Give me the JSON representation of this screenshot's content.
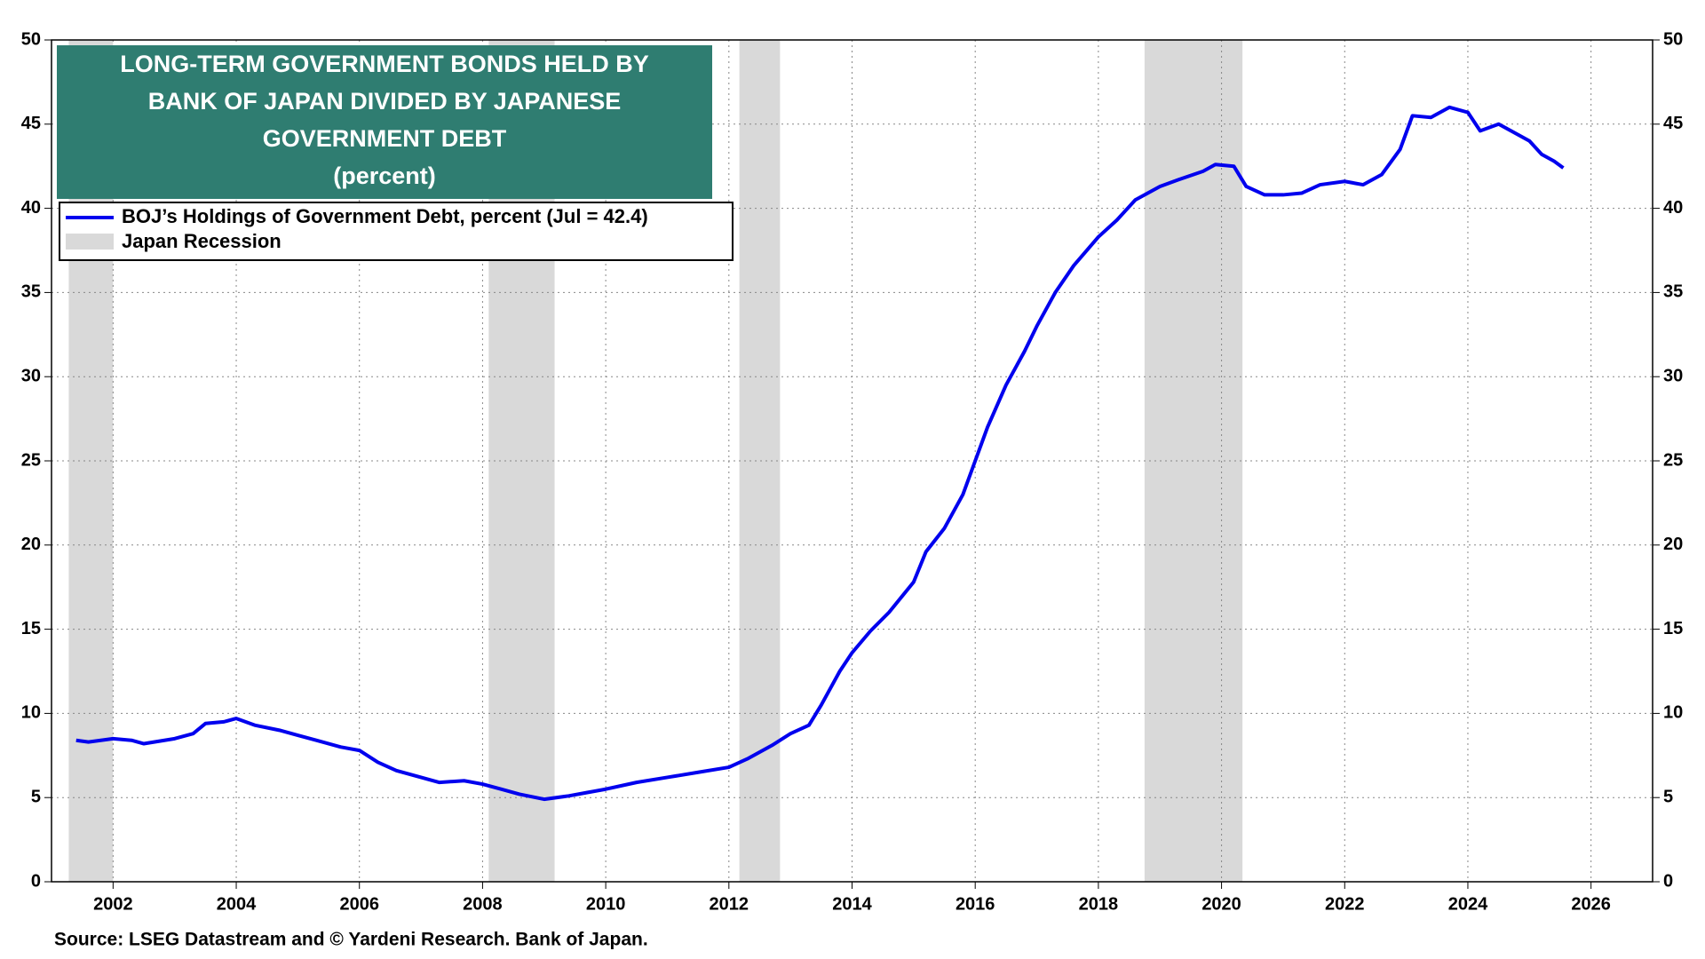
{
  "chart_data": {
    "type": "line",
    "title": [
      "LONG-TERM GOVERNMENT BONDS HELD BY",
      "BANK OF JAPAN DIVIDED BY JAPANESE",
      "GOVERNMENT DEBT",
      "(percent)"
    ],
    "source": "Source: LSEG Datastream and © Yardeni Research. Bank of Japan.",
    "x": [
      2001.4,
      2001.6,
      2002.0,
      2002.3,
      2002.5,
      2003.0,
      2003.3,
      2003.5,
      2003.8,
      2004.0,
      2004.3,
      2004.7,
      2005.0,
      2005.3,
      2005.7,
      2006.0,
      2006.3,
      2006.6,
      2007.0,
      2007.3,
      2007.7,
      2008.0,
      2008.3,
      2008.6,
      2009.0,
      2009.4,
      2009.7,
      2010.0,
      2010.5,
      2011.0,
      2011.5,
      2012.0,
      2012.3,
      2012.7,
      2013.0,
      2013.3,
      2013.5,
      2013.8,
      2014.0,
      2014.3,
      2014.6,
      2015.0,
      2015.2,
      2015.5,
      2015.8,
      2016.0,
      2016.2,
      2016.5,
      2016.8,
      2017.0,
      2017.3,
      2017.6,
      2018.0,
      2018.3,
      2018.6,
      2019.0,
      2019.3,
      2019.7,
      2019.9,
      2020.2,
      2020.4,
      2020.7,
      2021.0,
      2021.3,
      2021.6,
      2022.0,
      2022.3,
      2022.6,
      2022.9,
      2023.1,
      2023.4,
      2023.7,
      2024.0,
      2024.2,
      2024.5,
      2024.8,
      2025.0,
      2025.2,
      2025.4,
      2025.55
    ],
    "series": [
      {
        "name": "BOJ’s Holdings of Government Debt, percent (Jul = 42.4)",
        "color": "#0000ee",
        "values": [
          8.4,
          8.3,
          8.5,
          8.4,
          8.2,
          8.5,
          8.8,
          9.4,
          9.5,
          9.7,
          9.3,
          9.0,
          8.7,
          8.4,
          8.0,
          7.8,
          7.1,
          6.6,
          6.2,
          5.9,
          6.0,
          5.8,
          5.5,
          5.2,
          4.9,
          5.1,
          5.3,
          5.5,
          5.9,
          6.2,
          6.5,
          6.8,
          7.3,
          8.1,
          8.8,
          9.3,
          10.5,
          12.5,
          13.6,
          14.9,
          16.0,
          17.8,
          19.6,
          21.0,
          23.0,
          25.0,
          27.0,
          29.5,
          31.5,
          33.0,
          35.0,
          36.6,
          38.3,
          39.3,
          40.5,
          41.3,
          41.7,
          42.2,
          42.6,
          42.5,
          41.3,
          40.8,
          40.8,
          40.9,
          41.4,
          41.6,
          41.4,
          42.0,
          43.5,
          45.5,
          45.4,
          46.0,
          45.7,
          44.6,
          45.0,
          44.4,
          44.0,
          43.2,
          42.8,
          42.4
        ]
      }
    ],
    "recession_name": "Japan Recession",
    "recession_color": "#d9d9d9",
    "recessions": [
      [
        2001.28,
        2002.0
      ],
      [
        2008.1,
        2009.17
      ],
      [
        2012.17,
        2012.83
      ],
      [
        2018.75,
        2020.34
      ]
    ],
    "xlim": [
      2001,
      2027
    ],
    "xticks": [
      2002,
      2004,
      2006,
      2008,
      2010,
      2012,
      2014,
      2016,
      2018,
      2020,
      2022,
      2024,
      2026
    ],
    "ylim": [
      0,
      50
    ],
    "yticks": [
      0,
      5,
      10,
      15,
      20,
      25,
      30,
      35,
      40,
      45,
      50
    ],
    "grid": true,
    "title_color": "#2f7d71"
  }
}
